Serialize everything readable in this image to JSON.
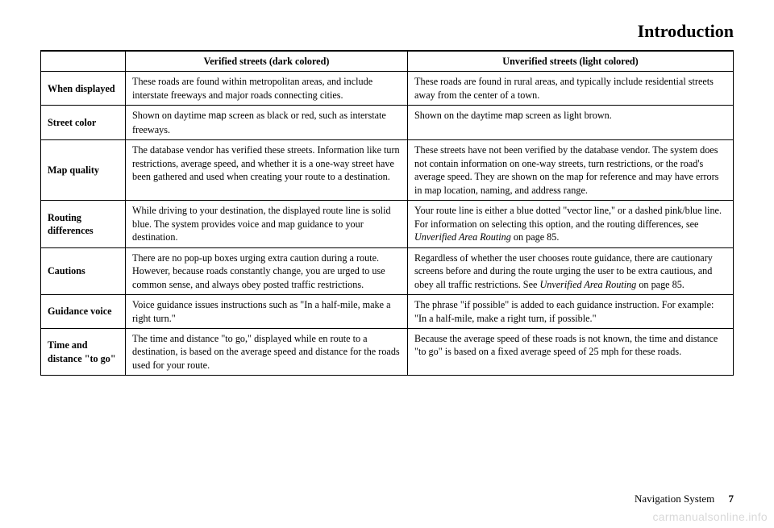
{
  "section_title": "Introduction",
  "columns": {
    "verified": "Verified streets (dark colored)",
    "unverified": "Unverified streets (light colored)"
  },
  "rows": [
    {
      "label": "When displayed",
      "verified": "These roads are found within metropolitan areas, and include interstate freeways and major roads connecting cities.",
      "unverified": "These roads are found in rural areas, and typically include residential streets away from the center of a town."
    },
    {
      "label": "Street color",
      "verified_pre": "Shown on daytime ",
      "verified_sans": "map",
      "verified_post": " screen as black or red, such as interstate freeways.",
      "unverified_pre": "Shown on the daytime ",
      "unverified_sans": "map",
      "unverified_post": " screen as light brown."
    },
    {
      "label": "Map quality",
      "verified": "The database vendor has verified these streets. Information like turn restrictions, average speed, and whether it is a one-way street have been gathered and used when creating your route to a destination.",
      "unverified": "These streets have not been verified by the database vendor. The system does not contain information on one-way streets, turn restrictions, or the road's average speed. They are shown on the map for reference and may have errors in map location, naming, and address range."
    },
    {
      "label": "Routing differences",
      "verified": "While driving to your destination, the displayed route line is solid blue. The system provides voice and map guidance to your destination.",
      "unverified_pre": "Your route line is either a blue dotted \"vector line,\" or a dashed pink/blue line. For information on selecting this option, and the routing differences, see ",
      "unverified_italic": "Unverified Area Routing",
      "unverified_post": " on page 85."
    },
    {
      "label": "Cautions",
      "verified": "There are no pop-up boxes urging extra caution during a route. However, because roads constantly change, you are urged to use common sense, and always obey posted traffic restrictions.",
      "unverified_pre": "Regardless of whether the user chooses route guidance, there are cautionary screens before and during the route urging the user to be extra cautious, and obey all traffic restrictions. See ",
      "unverified_italic": "Unverified Area Routing",
      "unverified_post": " on page 85."
    },
    {
      "label": "Guidance voice",
      "verified": "Voice guidance issues instructions such as \"In a half-mile, make a right turn.\"",
      "unverified": "The phrase \"if possible\" is added to each guidance instruction. For example: \"In a half-mile, make a right turn, if possible.\""
    },
    {
      "label": "Time and distance \"to go\"",
      "verified": "The time and distance \"to go,\" displayed while en route to a destination, is based on the average speed and distance for the roads used for your route.",
      "unverified": "Because the average speed of these roads is not known, the time and distance \"to go\" is based on a fixed average speed of 25 mph for these roads."
    }
  ],
  "footer_label": "Navigation System",
  "footer_page": "7",
  "watermark": "carmanualsonline.info"
}
